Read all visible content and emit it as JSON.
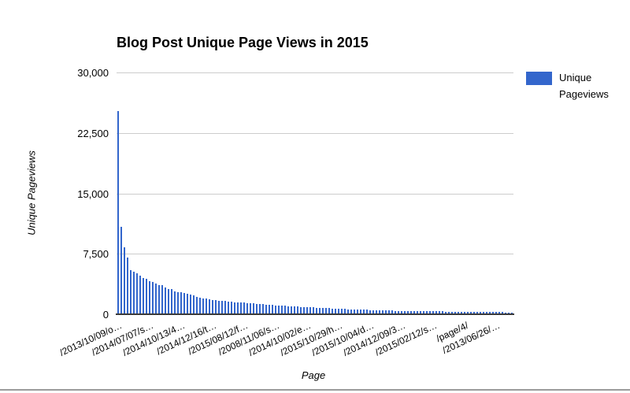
{
  "chart_data": {
    "type": "bar",
    "title": "Blog Post Unique Page Views in 2015",
    "xlabel": "Page",
    "ylabel": "Unique Pageviews",
    "legend": [
      "Unique Pageviews"
    ],
    "legend_position": "right",
    "bar_color": "#3366cc",
    "grid": true,
    "ylim": [
      0,
      30000
    ],
    "yticks": [
      0,
      7500,
      15000,
      22500,
      30000
    ],
    "ytick_labels": [
      "0",
      "7,500",
      "15,000",
      "22,500",
      "30,000"
    ],
    "x_tick_interval": 10,
    "x_tick_labels": [
      "/2013/10/09/o…",
      "/2014/07/07/s…",
      "/2014/10/13/4…",
      "/2014/12/16/t…",
      "/2015/08/12/f…",
      "/2008/11/06/s…",
      "/2014/10/02/e…",
      "/2015/10/29/h…",
      "/2015/10/04/d…",
      "/2014/12/09/3…",
      "/2015/02/12/s…",
      "/page/4/",
      "/2013/06/26/…"
    ],
    "values": [
      25200,
      10800,
      8300,
      7050,
      5500,
      5300,
      5100,
      4800,
      4450,
      4400,
      4150,
      4050,
      3820,
      3650,
      3580,
      3350,
      3150,
      3100,
      2850,
      2780,
      2700,
      2600,
      2500,
      2400,
      2300,
      2200,
      2100,
      2000,
      1930,
      1850,
      1800,
      1750,
      1700,
      1660,
      1620,
      1580,
      1550,
      1510,
      1480,
      1450,
      1420,
      1390,
      1360,
      1330,
      1300,
      1270,
      1240,
      1210,
      1180,
      1150,
      1120,
      1090,
      1060,
      1030,
      1000,
      980,
      960,
      940,
      920,
      900,
      880,
      860,
      840,
      820,
      800,
      780,
      760,
      740,
      720,
      700,
      680,
      660,
      645,
      630,
      615,
      600,
      585,
      570,
      555,
      540,
      525,
      510,
      500,
      490,
      480,
      470,
      460,
      450,
      440,
      430,
      420,
      410,
      400,
      395,
      390,
      385,
      380,
      375,
      370,
      365,
      360,
      355,
      350,
      345,
      340,
      335,
      330,
      325,
      320,
      315,
      310,
      305,
      300,
      295,
      290,
      285,
      280,
      275,
      270,
      265,
      260,
      255,
      250,
      245,
      240,
      235
    ]
  }
}
